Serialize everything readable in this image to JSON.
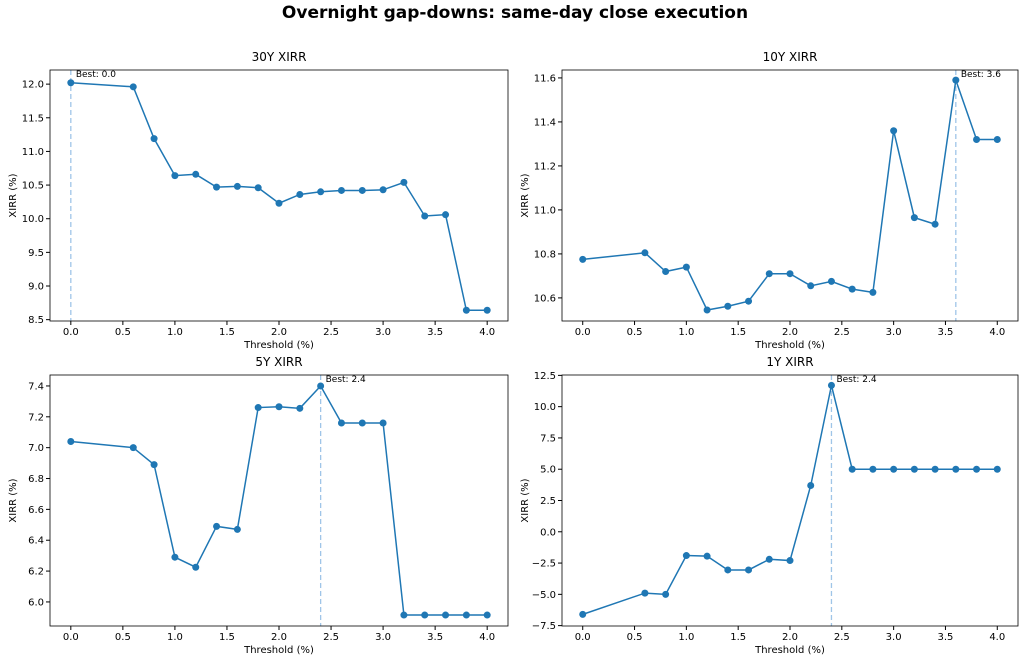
{
  "title": "Overnight gap-downs: same-day close execution",
  "chart_data": [
    {
      "type": "line",
      "title": "30Y XIRR",
      "xlabel": "Threshold (%)",
      "ylabel": "XIRR (%)",
      "x": [
        0.0,
        0.6,
        0.8,
        1.0,
        1.2,
        1.4,
        1.6,
        1.8,
        2.0,
        2.2,
        2.4,
        2.6,
        2.8,
        3.0,
        3.2,
        3.4,
        3.6,
        3.8,
        4.0
      ],
      "values": [
        12.02,
        11.96,
        11.19,
        10.64,
        10.66,
        10.47,
        10.48,
        10.46,
        10.23,
        10.36,
        10.4,
        10.42,
        10.42,
        10.43,
        10.54,
        10.04,
        10.06,
        8.64,
        8.64
      ],
      "color": "#1f77b4",
      "best_x": 0.0,
      "annotation": "Best: 0.0",
      "vline_color": "#9fc5e8",
      "xlim": [
        -0.2,
        4.2
      ],
      "ylim": [
        8.48,
        12.21
      ],
      "xticks": [
        {
          "value": 0,
          "label": "0.0"
        },
        0.5,
        {
          "value": 1,
          "label": "1.0"
        },
        1.5,
        {
          "value": 2,
          "label": "2.0"
        },
        2.5,
        {
          "value": 3,
          "label": "3.0"
        },
        3.5,
        {
          "value": 4,
          "label": "4.0"
        }
      ],
      "yticks": [
        8.5,
        {
          "value": 9,
          "label": "9.0"
        },
        9.5,
        {
          "value": 10,
          "label": "10.0"
        },
        10.5,
        {
          "value": 11,
          "label": "11.0"
        },
        11.5,
        {
          "value": 12,
          "label": "12.0"
        }
      ]
    },
    {
      "type": "line",
      "title": "10Y XIRR",
      "xlabel": "Threshold (%)",
      "ylabel": "XIRR (%)",
      "x": [
        0.0,
        0.6,
        0.8,
        1.0,
        1.2,
        1.4,
        1.6,
        1.8,
        2.0,
        2.2,
        2.4,
        2.6,
        2.8,
        3.0,
        3.2,
        3.4,
        3.6,
        3.8,
        4.0
      ],
      "values": [
        10.775,
        10.805,
        10.72,
        10.74,
        10.545,
        10.562,
        10.585,
        10.71,
        10.71,
        10.655,
        10.675,
        10.64,
        10.625,
        11.36,
        10.965,
        10.935,
        11.59,
        11.32,
        11.32
      ],
      "color": "#1f77b4",
      "best_x": 3.6,
      "annotation": "Best: 3.6",
      "vline_color": "#9fc5e8",
      "xlim": [
        -0.2,
        4.2
      ],
      "ylim": [
        10.495,
        11.636
      ],
      "xticks": [
        {
          "value": 0,
          "label": "0.0"
        },
        0.5,
        {
          "value": 1,
          "label": "1.0"
        },
        1.5,
        {
          "value": 2,
          "label": "2.0"
        },
        2.5,
        {
          "value": 3,
          "label": "3.0"
        },
        3.5,
        {
          "value": 4,
          "label": "4.0"
        }
      ],
      "yticks": [
        10.6,
        10.8,
        {
          "value": 11,
          "label": "11.0"
        },
        11.2,
        11.4,
        11.6
      ]
    },
    {
      "type": "line",
      "title": "5Y XIRR",
      "xlabel": "Threshold (%)",
      "ylabel": "XIRR (%)",
      "x": [
        0.0,
        0.6,
        0.8,
        1.0,
        1.2,
        1.4,
        1.6,
        1.8,
        2.0,
        2.2,
        2.4,
        2.6,
        2.8,
        3.0,
        3.2,
        3.4,
        3.6,
        3.8,
        4.0
      ],
      "values": [
        7.04,
        7.0,
        6.89,
        6.29,
        6.225,
        6.49,
        6.47,
        7.26,
        7.265,
        7.255,
        7.4,
        7.16,
        7.16,
        7.16,
        5.915,
        5.915,
        5.915,
        5.915,
        5.915
      ],
      "color": "#1f77b4",
      "best_x": 2.4,
      "annotation": "Best: 2.4",
      "vline_color": "#9fc5e8",
      "xlim": [
        -0.2,
        4.2
      ],
      "ylim": [
        5.844,
        7.471
      ],
      "xticks": [
        {
          "value": 0,
          "label": "0.0"
        },
        0.5,
        {
          "value": 1,
          "label": "1.0"
        },
        1.5,
        {
          "value": 2,
          "label": "2.0"
        },
        2.5,
        {
          "value": 3,
          "label": "3.0"
        },
        3.5,
        {
          "value": 4,
          "label": "4.0"
        }
      ],
      "yticks": [
        {
          "value": 6,
          "label": "6.0"
        },
        6.2,
        6.4,
        6.6,
        6.8,
        {
          "value": 7,
          "label": "7.0"
        },
        7.2,
        7.4
      ]
    },
    {
      "type": "line",
      "title": "1Y XIRR",
      "xlabel": "Threshold (%)",
      "ylabel": "XIRR (%)",
      "x": [
        0.0,
        0.6,
        0.8,
        1.0,
        1.2,
        1.4,
        1.6,
        1.8,
        2.0,
        2.2,
        2.4,
        2.6,
        2.8,
        3.0,
        3.2,
        3.4,
        3.6,
        3.8,
        4.0
      ],
      "values": [
        -6.6,
        -4.9,
        -5.0,
        -1.9,
        -1.95,
        -3.05,
        -3.05,
        -2.2,
        -2.3,
        3.7,
        11.7,
        5.0,
        5.0,
        5.0,
        5.0,
        5.0,
        5.0,
        5.0,
        5.0
      ],
      "color": "#1f77b4",
      "best_x": 2.4,
      "annotation": "Best: 2.4",
      "vline_color": "#9fc5e8",
      "xlim": [
        -0.2,
        4.2
      ],
      "ylim": [
        -7.53,
        12.53
      ],
      "xticks": [
        {
          "value": 0,
          "label": "0.0"
        },
        0.5,
        {
          "value": 1,
          "label": "1.0"
        },
        1.5,
        {
          "value": 2,
          "label": "2.0"
        },
        2.5,
        {
          "value": 3,
          "label": "3.0"
        },
        3.5,
        {
          "value": 4,
          "label": "4.0"
        }
      ],
      "yticks": [
        {
          "value": -7.5,
          "label": "−7.5"
        },
        {
          "value": -5,
          "label": "−5.0"
        },
        {
          "value": -2.5,
          "label": "−2.5"
        },
        {
          "value": 0,
          "label": "0.0"
        },
        2.5,
        {
          "value": 5,
          "label": "5.0"
        },
        7.5,
        {
          "value": 10,
          "label": "10.0"
        },
        12.5
      ]
    }
  ]
}
